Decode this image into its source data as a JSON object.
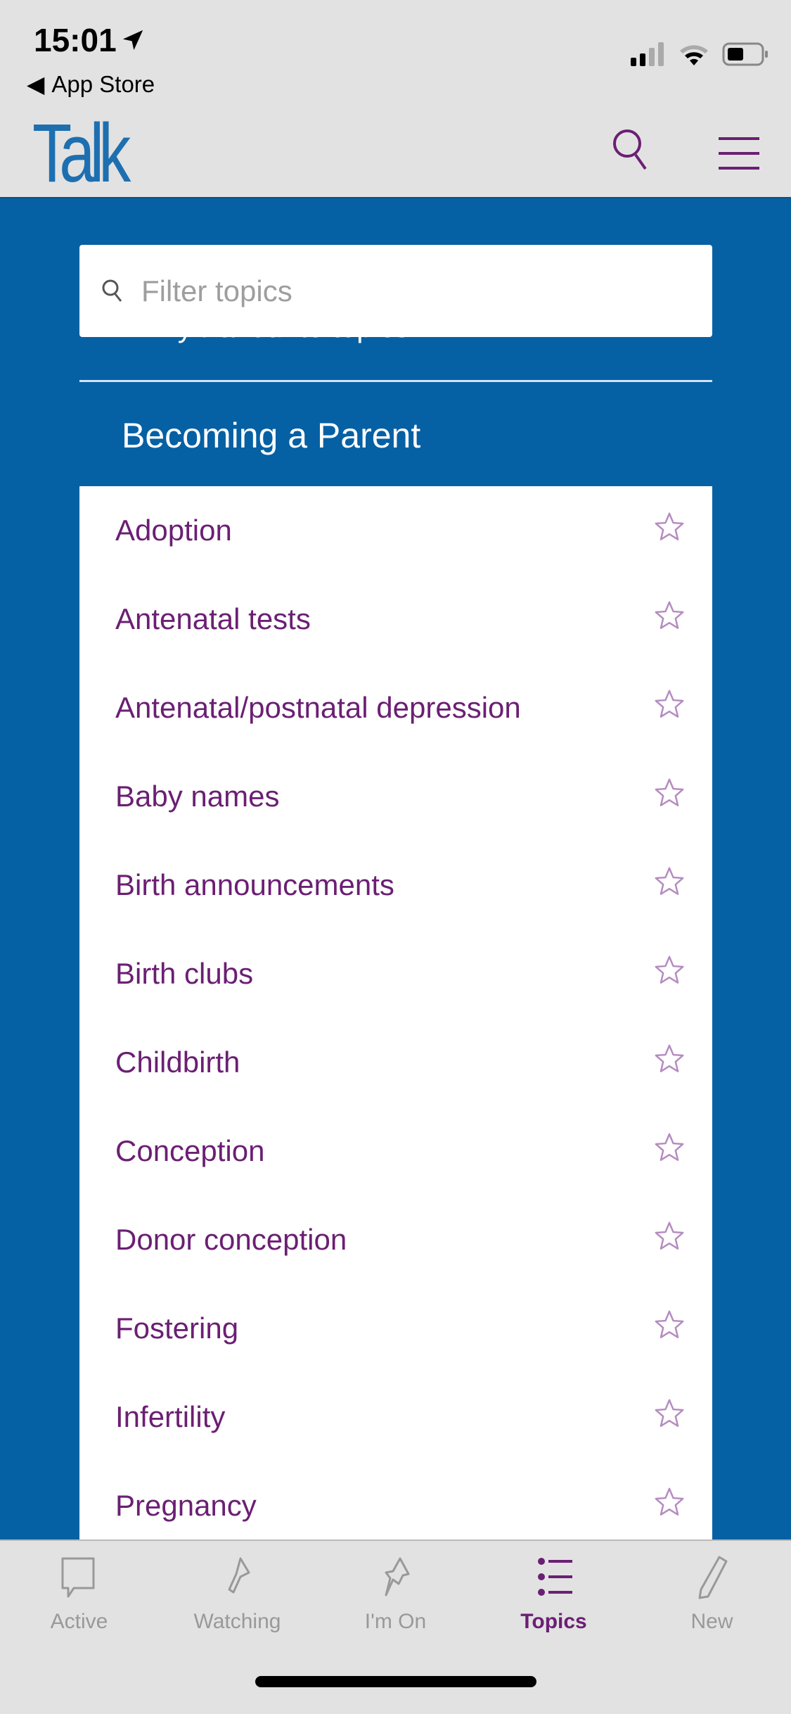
{
  "status_bar": {
    "time": "15:01",
    "back_label": "App Store"
  },
  "header": {
    "logo": "Talk",
    "search_icon": "search-icon",
    "menu_icon": "hamburger-menu-icon"
  },
  "filter": {
    "placeholder": "Filter topics",
    "value": ""
  },
  "favourites_label": "My Favourite topics",
  "section_title": "Becoming a Parent",
  "topics": [
    "Adoption",
    "Antenatal tests",
    "Antenatal/postnatal depression",
    "Baby names",
    "Birth announcements",
    "Birth clubs",
    "Childbirth",
    "Conception",
    "Donor conception",
    "Fostering",
    "Infertility",
    "Pregnancy"
  ],
  "tabs": [
    {
      "label": "Active",
      "icon": "speech-bubble-icon"
    },
    {
      "label": "Watching",
      "icon": "flashlight-icon"
    },
    {
      "label": "I'm On",
      "icon": "pushpin-icon"
    },
    {
      "label": "Topics",
      "icon": "list-icon",
      "active": true
    },
    {
      "label": "New",
      "icon": "pencil-icon"
    }
  ],
  "colors": {
    "brand_blue": "#0660a4",
    "accent_purple": "#6b1f73",
    "header_bg": "#e2e2e2"
  }
}
